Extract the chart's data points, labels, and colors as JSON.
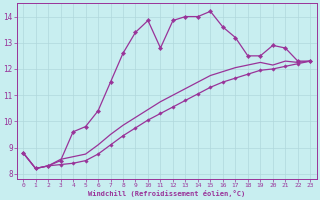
{
  "xlabel": "Windchill (Refroidissement éolien,°C)",
  "background_color": "#c8eef0",
  "grid_color": "#b0d8dc",
  "line_color": "#993399",
  "x_values": [
    0,
    1,
    2,
    3,
    4,
    5,
    6,
    7,
    8,
    9,
    10,
    11,
    12,
    13,
    14,
    15,
    16,
    17,
    18,
    19,
    20,
    21,
    22,
    23
  ],
  "line1_y": [
    8.8,
    8.2,
    8.3,
    8.5,
    9.6,
    9.8,
    10.4,
    11.5,
    12.6,
    13.4,
    13.85,
    12.8,
    13.85,
    14.0,
    14.0,
    14.2,
    13.6,
    13.2,
    12.5,
    12.5,
    12.9,
    12.8,
    12.3,
    12.3
  ],
  "line2_y": [
    8.8,
    8.2,
    8.3,
    8.35,
    8.4,
    8.5,
    8.75,
    9.1,
    9.45,
    9.75,
    10.05,
    10.3,
    10.55,
    10.8,
    11.05,
    11.3,
    11.5,
    11.65,
    11.8,
    11.95,
    12.0,
    12.1,
    12.2,
    12.3
  ],
  "line3_y": [
    8.8,
    8.2,
    8.3,
    8.55,
    8.65,
    8.75,
    9.1,
    9.5,
    9.85,
    10.15,
    10.45,
    10.75,
    11.0,
    11.25,
    11.5,
    11.75,
    11.9,
    12.05,
    12.15,
    12.25,
    12.15,
    12.3,
    12.25,
    12.3
  ],
  "ylim": [
    7.8,
    14.5
  ],
  "xlim": [
    -0.5,
    23.5
  ],
  "yticks": [
    8,
    9,
    10,
    11,
    12,
    13,
    14
  ],
  "xticks": [
    0,
    1,
    2,
    3,
    4,
    5,
    6,
    7,
    8,
    9,
    10,
    11,
    12,
    13,
    14,
    15,
    16,
    17,
    18,
    19,
    20,
    21,
    22,
    23
  ]
}
